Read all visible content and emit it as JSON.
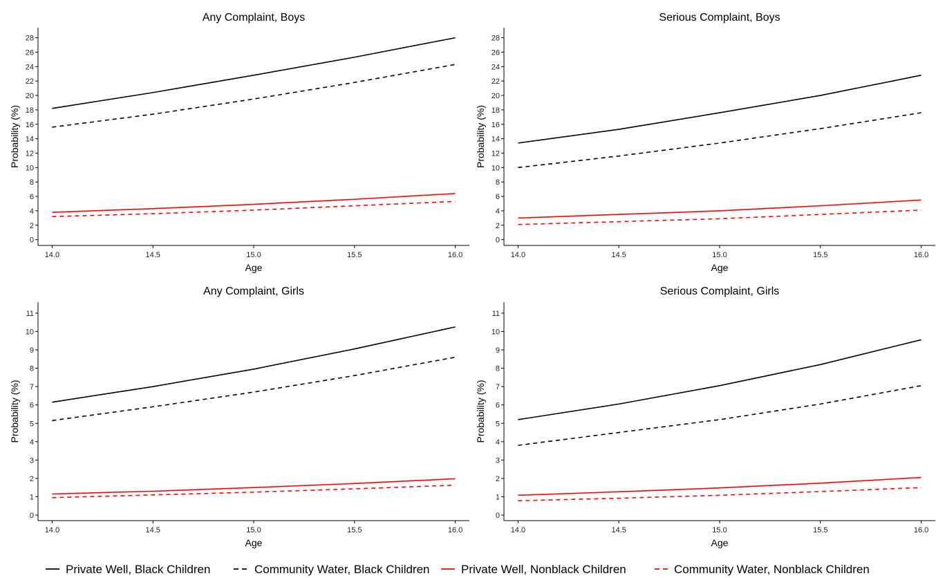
{
  "legend": {
    "entries": [
      {
        "label": "Private Well, Black Children",
        "color": "#000000",
        "dash": "solid"
      },
      {
        "label": "Community Water, Black Children",
        "color": "#000000",
        "dash": "dashed"
      },
      {
        "label": "Private Well, Nonblack Children",
        "color": "#ff0000",
        "dash": "solid"
      },
      {
        "label": "Community Water, Nonblack Children",
        "color": "#ff0000",
        "dash": "dashed"
      }
    ],
    "placement": "bottom"
  },
  "chart_data": [
    {
      "type": "line",
      "title": "Any Complaint, Boys",
      "xlabel": "Age",
      "ylabel": "Probability (%)",
      "xlim": [
        13.93,
        16.07
      ],
      "ylim": [
        -0.8,
        29.4
      ],
      "xticks": [
        "14.0",
        "14.5",
        "15.0",
        "15.5",
        "16.0"
      ],
      "yticks": [
        0,
        2,
        4,
        6,
        8,
        10,
        12,
        14,
        16,
        18,
        20,
        22,
        24,
        26,
        28
      ],
      "grid": false,
      "x": [
        14.0,
        14.5,
        15.0,
        15.5,
        16.0
      ],
      "series": [
        {
          "name": "Private Well, Black Children",
          "color": "#000000",
          "dash": "solid",
          "values": [
            18.2,
            20.4,
            22.8,
            25.3,
            28.0
          ]
        },
        {
          "name": "Community Water, Black Children",
          "color": "#000000",
          "dash": "dashed",
          "values": [
            15.6,
            17.4,
            19.5,
            21.8,
            24.3
          ]
        },
        {
          "name": "Private Well, Nonblack Children",
          "color": "#ff0000",
          "dash": "solid",
          "values": [
            3.8,
            4.3,
            4.9,
            5.6,
            6.4
          ]
        },
        {
          "name": "Community Water, Nonblack Children",
          "color": "#ff0000",
          "dash": "dashed",
          "values": [
            3.2,
            3.6,
            4.1,
            4.7,
            5.3
          ]
        }
      ]
    },
    {
      "type": "line",
      "title": "Serious Complaint, Boys",
      "xlabel": "Age",
      "ylabel": "Probability (%)",
      "xlim": [
        13.93,
        16.07
      ],
      "ylim": [
        -0.8,
        29.4
      ],
      "xticks": [
        "14.0",
        "14.5",
        "15.0",
        "15.5",
        "16.0"
      ],
      "yticks": [
        0,
        2,
        4,
        6,
        8,
        10,
        12,
        14,
        16,
        18,
        20,
        22,
        24,
        26,
        28
      ],
      "grid": false,
      "x": [
        14.0,
        14.5,
        15.0,
        15.5,
        16.0
      ],
      "series": [
        {
          "name": "Private Well, Black Children",
          "color": "#000000",
          "dash": "solid",
          "values": [
            13.4,
            15.3,
            17.6,
            20.0,
            22.8
          ]
        },
        {
          "name": "Community Water, Black Children",
          "color": "#000000",
          "dash": "dashed",
          "values": [
            10.0,
            11.6,
            13.4,
            15.4,
            17.6
          ]
        },
        {
          "name": "Private Well, Nonblack Children",
          "color": "#ff0000",
          "dash": "solid",
          "values": [
            3.0,
            3.5,
            4.0,
            4.7,
            5.5
          ]
        },
        {
          "name": "Community Water, Nonblack Children",
          "color": "#ff0000",
          "dash": "dashed",
          "values": [
            2.1,
            2.5,
            2.9,
            3.5,
            4.1
          ]
        }
      ]
    },
    {
      "type": "line",
      "title": "Any Complaint, Girls",
      "xlabel": "Age",
      "ylabel": "Probability (%)",
      "xlim": [
        13.93,
        16.07
      ],
      "ylim": [
        -0.3,
        11.6
      ],
      "xticks": [
        "14.0",
        "14.5",
        "15.0",
        "15.5",
        "16.0"
      ],
      "yticks": [
        0,
        1,
        2,
        3,
        4,
        5,
        6,
        7,
        8,
        9,
        10,
        11
      ],
      "grid": false,
      "x": [
        14.0,
        14.5,
        15.0,
        15.5,
        16.0
      ],
      "series": [
        {
          "name": "Private Well, Black Children",
          "color": "#000000",
          "dash": "solid",
          "values": [
            6.15,
            7.0,
            7.95,
            9.05,
            10.25
          ]
        },
        {
          "name": "Community Water, Black Children",
          "color": "#000000",
          "dash": "dashed",
          "values": [
            5.15,
            5.9,
            6.7,
            7.6,
            8.6
          ]
        },
        {
          "name": "Private Well, Nonblack Children",
          "color": "#ff0000",
          "dash": "solid",
          "values": [
            1.15,
            1.3,
            1.5,
            1.72,
            1.98
          ]
        },
        {
          "name": "Community Water, Nonblack Children",
          "color": "#ff0000",
          "dash": "dashed",
          "values": [
            0.95,
            1.1,
            1.25,
            1.43,
            1.63
          ]
        }
      ]
    },
    {
      "type": "line",
      "title": "Serious Complaint, Girls",
      "xlabel": "Age",
      "ylabel": "Probability (%)",
      "xlim": [
        13.93,
        16.07
      ],
      "ylim": [
        -0.3,
        11.6
      ],
      "xticks": [
        "14.0",
        "14.5",
        "15.0",
        "15.5",
        "16.0"
      ],
      "yticks": [
        0,
        1,
        2,
        3,
        4,
        5,
        6,
        7,
        8,
        9,
        10,
        11
      ],
      "grid": false,
      "x": [
        14.0,
        14.5,
        15.0,
        15.5,
        16.0
      ],
      "series": [
        {
          "name": "Private Well, Black Children",
          "color": "#000000",
          "dash": "solid",
          "values": [
            5.2,
            6.05,
            7.05,
            8.2,
            9.55
          ]
        },
        {
          "name": "Community Water, Black Children",
          "color": "#000000",
          "dash": "dashed",
          "values": [
            3.8,
            4.5,
            5.2,
            6.05,
            7.05
          ]
        },
        {
          "name": "Private Well, Nonblack Children",
          "color": "#ff0000",
          "dash": "solid",
          "values": [
            1.08,
            1.27,
            1.48,
            1.74,
            2.05
          ]
        },
        {
          "name": "Community Water, Nonblack Children",
          "color": "#ff0000",
          "dash": "dashed",
          "values": [
            0.78,
            0.92,
            1.08,
            1.28,
            1.5
          ]
        }
      ]
    }
  ]
}
